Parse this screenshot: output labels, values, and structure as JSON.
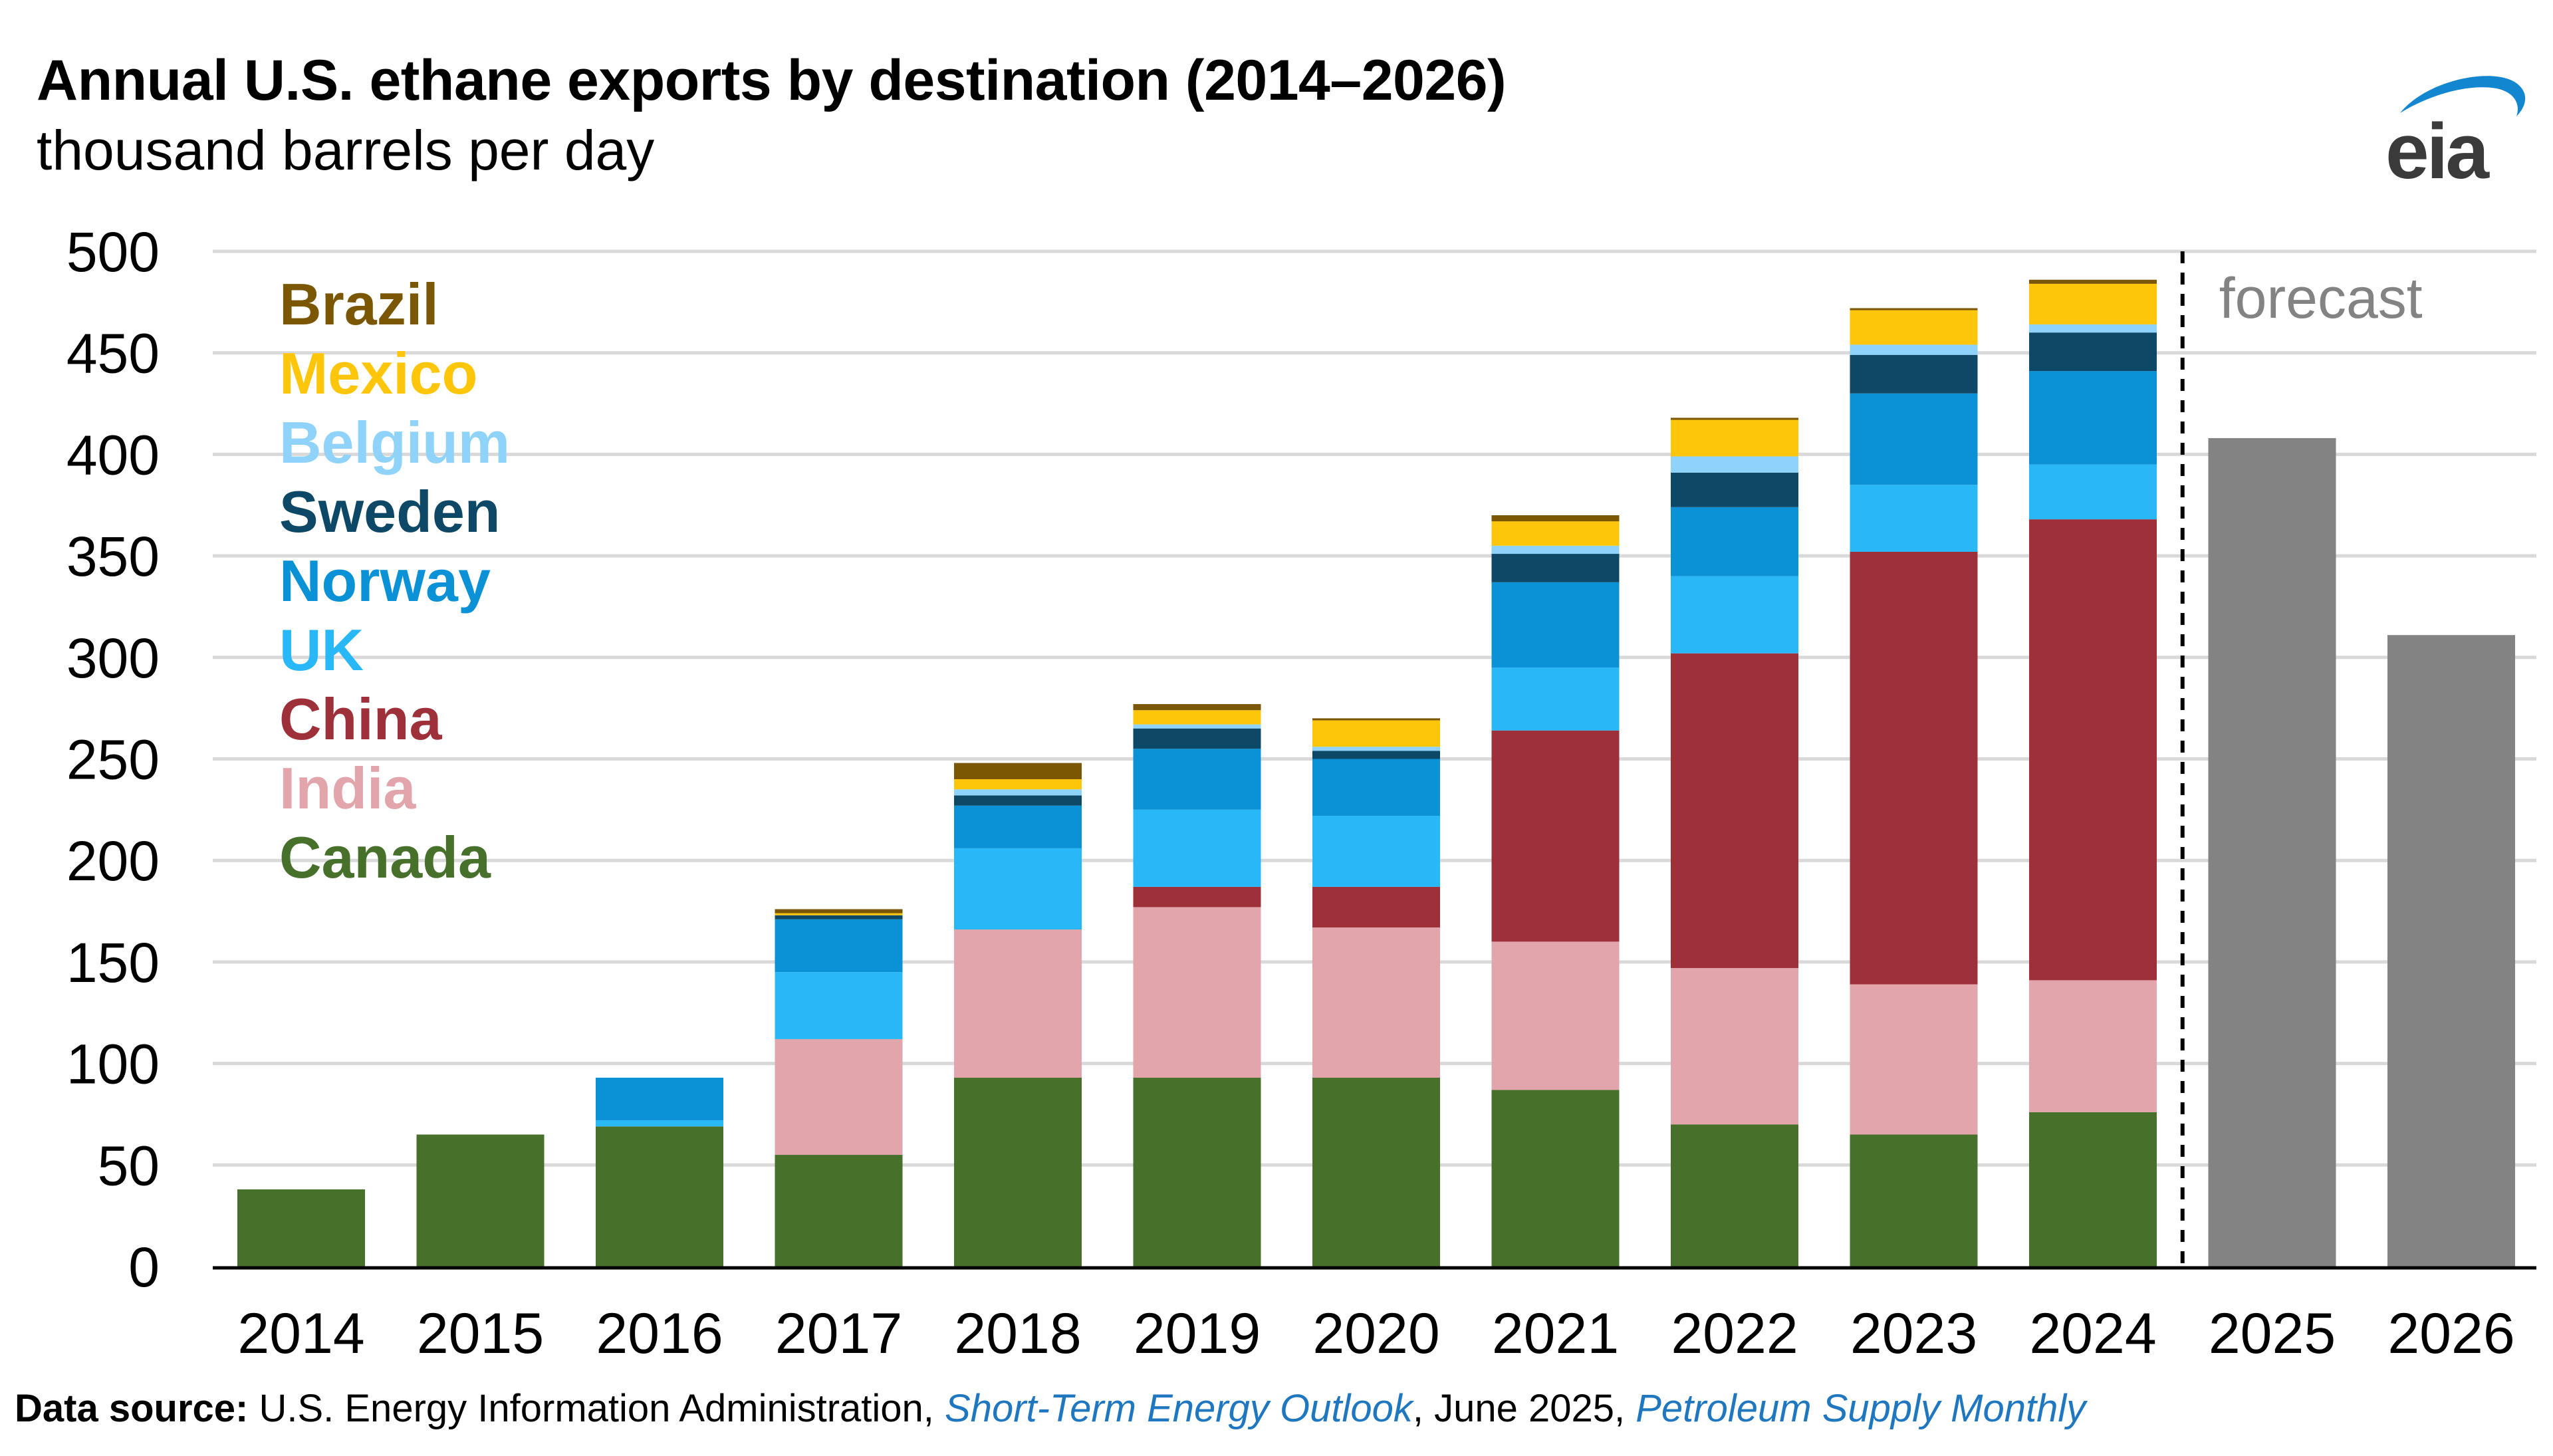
{
  "title": "Annual U.S. ethane exports by destination (2014–2026)",
  "subtitle": "thousand barrels per day",
  "logo_text": "eia",
  "source": {
    "label": "Data source:",
    "text1": " U.S. Energy Information Administration, ",
    "link1": "Short-Term Energy Outlook",
    "text2": ", June 2025, ",
    "link2": "Petroleum Supply Monthly"
  },
  "chart_data": {
    "type": "bar",
    "stacked": true,
    "title": "Annual U.S. ethane exports by destination (2014–2026)",
    "ylabel": "thousand barrels per day",
    "xlabel": "",
    "ylim": [
      0,
      500
    ],
    "yticks": [
      0,
      50,
      100,
      150,
      200,
      250,
      300,
      350,
      400,
      450,
      500
    ],
    "grid": true,
    "categories": [
      "2014",
      "2015",
      "2016",
      "2017",
      "2018",
      "2019",
      "2020",
      "2021",
      "2022",
      "2023",
      "2024",
      "2025",
      "2026"
    ],
    "forecast_label": "forecast",
    "forecast_start": "2025",
    "series": [
      {
        "name": "Canada",
        "color": "#47702b",
        "values": [
          38,
          65,
          69,
          55,
          93,
          93,
          93,
          87,
          70,
          65,
          76,
          null,
          null
        ]
      },
      {
        "name": "India",
        "color": "#e2a5ab",
        "values": [
          0,
          0,
          0,
          57,
          73,
          84,
          74,
          73,
          77,
          74,
          65,
          null,
          null
        ]
      },
      {
        "name": "China",
        "color": "#9e3039",
        "values": [
          0,
          0,
          0,
          0,
          0,
          10,
          20,
          104,
          155,
          213,
          227,
          null,
          null
        ]
      },
      {
        "name": "UK",
        "color": "#29b8f7",
        "values": [
          0,
          0,
          3,
          33,
          40,
          38,
          35,
          31,
          38,
          33,
          27,
          null,
          null
        ]
      },
      {
        "name": "Norway",
        "color": "#0a91d6",
        "values": [
          0,
          0,
          21,
          26,
          21,
          30,
          28,
          42,
          34,
          45,
          46,
          null,
          null
        ]
      },
      {
        "name": "Sweden",
        "color": "#0d4866",
        "values": [
          0,
          0,
          0,
          2,
          5,
          10,
          4,
          14,
          17,
          19,
          19,
          null,
          null
        ]
      },
      {
        "name": "Belgium",
        "color": "#8fd3fa",
        "values": [
          0,
          0,
          0,
          0,
          3,
          2,
          2,
          4,
          8,
          5,
          4,
          null,
          null
        ]
      },
      {
        "name": "Mexico",
        "color": "#fec60b",
        "values": [
          0,
          0,
          0,
          1,
          5,
          7,
          13,
          12,
          18,
          17,
          20,
          null,
          null
        ]
      },
      {
        "name": "Brazil",
        "color": "#7b5603",
        "values": [
          0,
          0,
          0,
          2,
          8,
          3,
          1,
          3,
          1,
          1,
          2,
          null,
          null
        ]
      },
      {
        "name": "Forecast total",
        "color": "#838383",
        "values": [
          null,
          null,
          null,
          null,
          null,
          null,
          null,
          null,
          null,
          null,
          null,
          408,
          311
        ]
      }
    ],
    "legend": [
      "Brazil",
      "Mexico",
      "Belgium",
      "Sweden",
      "Norway",
      "UK",
      "China",
      "India",
      "Canada"
    ],
    "legend_position": "top-left"
  }
}
